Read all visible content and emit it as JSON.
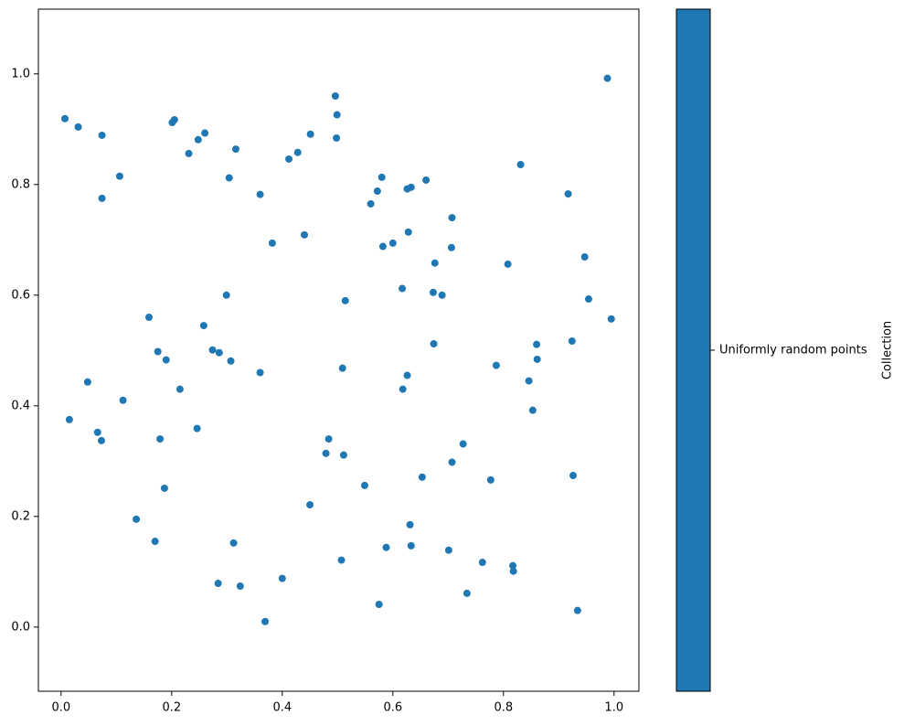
{
  "chart_data": {
    "type": "scatter",
    "x": [
      0.007,
      0.031,
      0.074,
      0.106,
      0.074,
      0.015,
      0.048,
      0.066,
      0.073,
      0.112,
      0.136,
      0.159,
      0.17,
      0.175,
      0.179,
      0.187,
      0.19,
      0.201,
      0.205,
      0.215,
      0.231,
      0.248,
      0.246,
      0.26,
      0.258,
      0.274,
      0.286,
      0.299,
      0.304,
      0.307,
      0.316,
      0.312,
      0.284,
      0.324,
      0.36,
      0.36,
      0.369,
      0.382,
      0.4,
      0.412,
      0.428,
      0.44,
      0.451,
      0.45,
      0.484,
      0.479,
      0.496,
      0.499,
      0.498,
      0.509,
      0.511,
      0.507,
      0.514,
      0.549,
      0.56,
      0.572,
      0.58,
      0.582,
      0.575,
      0.588,
      0.6,
      0.617,
      0.618,
      0.626,
      0.628,
      0.626,
      0.633,
      0.631,
      0.633,
      0.653,
      0.66,
      0.673,
      0.674,
      0.676,
      0.689,
      0.706,
      0.707,
      0.707,
      0.701,
      0.727,
      0.734,
      0.762,
      0.777,
      0.787,
      0.808,
      0.831,
      0.846,
      0.853,
      0.86,
      0.861,
      0.817,
      0.818,
      0.917,
      0.924,
      0.926,
      0.934,
      0.947,
      0.954,
      0.995,
      0.988
    ],
    "series": [
      {
        "name": "Uniformly random points",
        "color": "#1f77b4",
        "values": [
          0.919,
          0.904,
          0.889,
          0.815,
          0.775,
          0.375,
          0.443,
          0.352,
          0.337,
          0.41,
          0.195,
          0.56,
          0.155,
          0.498,
          0.34,
          0.251,
          0.483,
          0.912,
          0.917,
          0.43,
          0.856,
          0.881,
          0.359,
          0.893,
          0.545,
          0.501,
          0.496,
          0.6,
          0.812,
          0.481,
          0.864,
          0.152,
          0.079,
          0.074,
          0.782,
          0.46,
          0.01,
          0.694,
          0.088,
          0.846,
          0.858,
          0.709,
          0.891,
          0.221,
          0.34,
          0.314,
          0.96,
          0.926,
          0.884,
          0.468,
          0.311,
          0.121,
          0.59,
          0.256,
          0.765,
          0.788,
          0.813,
          0.688,
          0.041,
          0.144,
          0.694,
          0.612,
          0.43,
          0.455,
          0.714,
          0.792,
          0.795,
          0.185,
          0.147,
          0.271,
          0.808,
          0.605,
          0.512,
          0.658,
          0.6,
          0.686,
          0.74,
          0.298,
          0.139,
          0.331,
          0.061,
          0.117,
          0.266,
          0.473,
          0.656,
          0.836,
          0.445,
          0.392,
          0.511,
          0.484,
          0.111,
          0.101,
          0.783,
          0.517,
          0.274,
          0.03,
          0.669,
          0.593,
          0.557,
          0.992
        ]
      }
    ],
    "xlim": [
      -0.041,
      1.045
    ],
    "ylim": [
      -0.116,
      1.117
    ],
    "xticks": [
      {
        "value": 0,
        "label": "0.0"
      },
      0.2,
      0.4,
      0.6,
      0.8,
      {
        "value": 1,
        "label": "1.0"
      }
    ],
    "yticks": [
      {
        "value": 0,
        "label": "0.0"
      },
      0.2,
      0.4,
      0.6,
      0.8,
      {
        "value": 1,
        "label": "1.0"
      }
    ],
    "colorbar_label": "Collection"
  }
}
